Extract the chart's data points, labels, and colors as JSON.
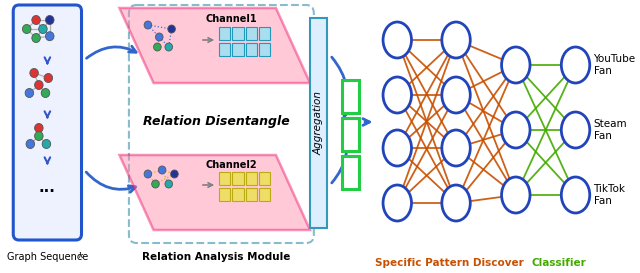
{
  "fig_width": 6.4,
  "fig_height": 2.73,
  "dpi": 100,
  "bg_color": "#ffffff",
  "orange_color": "#c85000",
  "green_color": "#44aa00",
  "blue_color": "#3355cc",
  "node_ec": "#2244bb",
  "node_fc": "#ffffff",
  "labels": {
    "graph_seq": "Graph Sequence",
    "T_symbol": "ᵏ",
    "rel_analysis": "Relation Analysis Module",
    "rel_disentangle": "Relation Disentangle",
    "aggregation": "Aggregation",
    "channel1": "Channel1",
    "channel2": "Channel2",
    "specific_pattern": "Specific Pattern Discover",
    "classifier": "Classifier",
    "youtube": "YouTube\nFan",
    "steam": "Steam\nFan",
    "tiktok": "TikTok\nFan"
  }
}
